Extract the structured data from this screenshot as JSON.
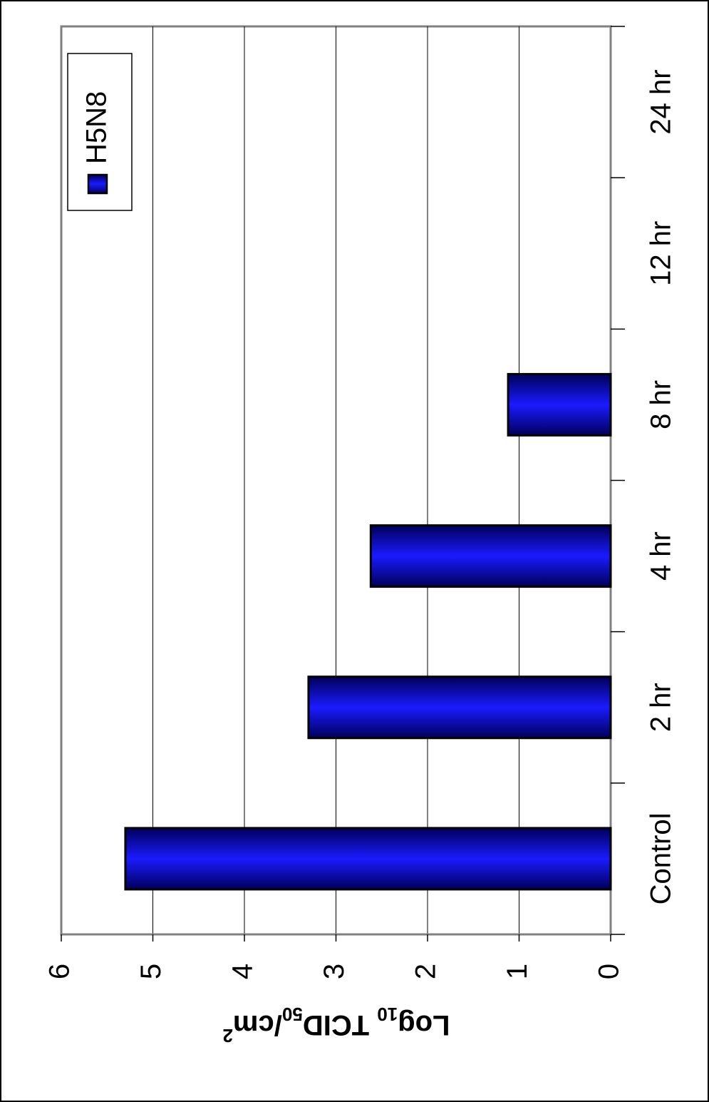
{
  "chart_data": {
    "type": "bar",
    "orientation": "horizontal-bars (figure rotated 90 degrees)",
    "categories": [
      "Control",
      "2 hr",
      "4 hr",
      "8 hr",
      "12 hr",
      "24 hr"
    ],
    "series": [
      {
        "name": "H5N8",
        "values": [
          5.3,
          3.3,
          2.62,
          1.12,
          0,
          0
        ],
        "color": "#1010ee"
      }
    ],
    "ylabel": {
      "main": "Log",
      "sub1": "10",
      "mid": " TCID",
      "sub2": "50",
      "tail": "/cm",
      "sup": "2"
    },
    "ylim": [
      0,
      6
    ],
    "yticks": [
      "0",
      "1",
      "2",
      "3",
      "4",
      "5",
      "6"
    ],
    "grid": true,
    "legend_position": "top-right",
    "colors": {
      "bar": "#1010ee",
      "bar_dark": "#00005a",
      "plot_border": "#808080",
      "gridline": "#000000",
      "frame": "#000000"
    }
  }
}
